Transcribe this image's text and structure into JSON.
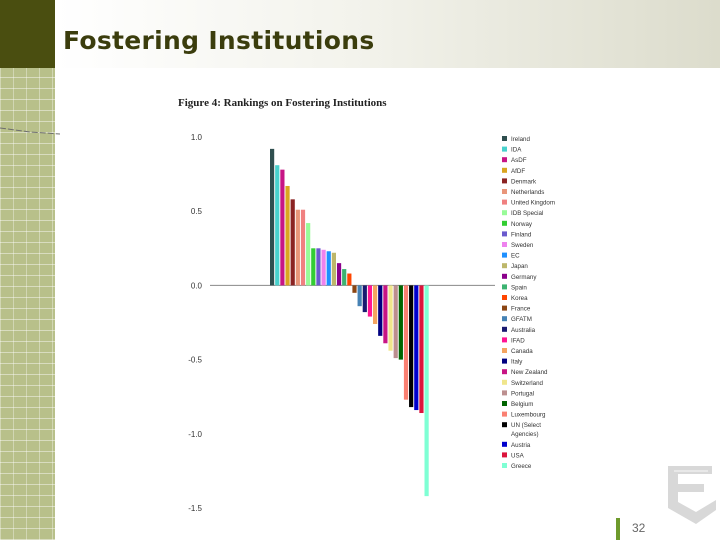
{
  "slide": {
    "title": "Fostering Institutions",
    "page_number": "32"
  },
  "chart_data": {
    "type": "bar",
    "title": "Figure 4: Rankings on Fostering Institutions",
    "xlabel": "",
    "ylabel": "",
    "ylim": [
      -1.5,
      1.0
    ],
    "yticks": [
      "1.0",
      "0.5",
      "0.0",
      "-0.5",
      "-1.0",
      "-1.5"
    ],
    "grid": false,
    "legend_position": "right",
    "categories": [
      "Ireland",
      "IDA",
      "AsDF",
      "AfDF",
      "Denmark",
      "Netherlands",
      "United Kingdom",
      "IDB Special",
      "Norway",
      "Finland",
      "Sweden",
      "EC",
      "Japan",
      "Germany",
      "Spain",
      "Korea",
      "France",
      "GFATM",
      "Australia",
      "IFAD",
      "Canada",
      "Italy",
      "New Zealand",
      "Switzerland",
      "Portugal",
      "Belgium",
      "Luxembourg",
      "UN (Select Agencies)",
      "Austria",
      "USA",
      "Greece"
    ],
    "legend_lines": [
      [
        "Ireland"
      ],
      [
        "IDA"
      ],
      [
        "AsDF"
      ],
      [
        "AfDF"
      ],
      [
        "Denmark"
      ],
      [
        "Netherlands"
      ],
      [
        "United Kingdom"
      ],
      [
        "IDB Special"
      ],
      [
        "Norway"
      ],
      [
        "Finland"
      ],
      [
        "Sweden"
      ],
      [
        "EC"
      ],
      [
        "Japan"
      ],
      [
        "Germany"
      ],
      [
        "Spain"
      ],
      [
        "Korea"
      ],
      [
        "France"
      ],
      [
        "GFATM"
      ],
      [
        "Australia"
      ],
      [
        "IFAD"
      ],
      [
        "Canada"
      ],
      [
        "Italy"
      ],
      [
        "New Zealand"
      ],
      [
        "Switzerland"
      ],
      [
        "Portugal"
      ],
      [
        "Belgium"
      ],
      [
        "Luxembourg"
      ],
      [
        "UN (Select",
        "Agencies)"
      ],
      [
        "Austria"
      ],
      [
        "USA"
      ],
      [
        "Greece"
      ]
    ],
    "values": [
      0.92,
      0.81,
      0.78,
      0.67,
      0.58,
      0.51,
      0.51,
      0.42,
      0.25,
      0.25,
      0.24,
      0.23,
      0.22,
      0.15,
      0.11,
      0.08,
      -0.05,
      -0.14,
      -0.18,
      -0.21,
      -0.26,
      -0.34,
      -0.39,
      -0.44,
      -0.49,
      -0.5,
      -0.77,
      -0.82,
      -0.84,
      -0.86,
      -1.42
    ],
    "colors": [
      "#2f4f4f",
      "#48d1cc",
      "#c71585",
      "#daa520",
      "#8b2323",
      "#e9967a",
      "#f08080",
      "#98fb98",
      "#32cd32",
      "#6a5acd",
      "#ee82ee",
      "#1e90ff",
      "#bdb76b",
      "#8b008b",
      "#3cb371",
      "#ff4500",
      "#8b4513",
      "#4682b4",
      "#191970",
      "#ff1493",
      "#f4a460",
      "#000080",
      "#c71585",
      "#f0e68c",
      "#bc8f8f",
      "#006400",
      "#fa8072",
      "#000000",
      "#0000cd",
      "#dc143c",
      "#7fffd4"
    ]
  }
}
